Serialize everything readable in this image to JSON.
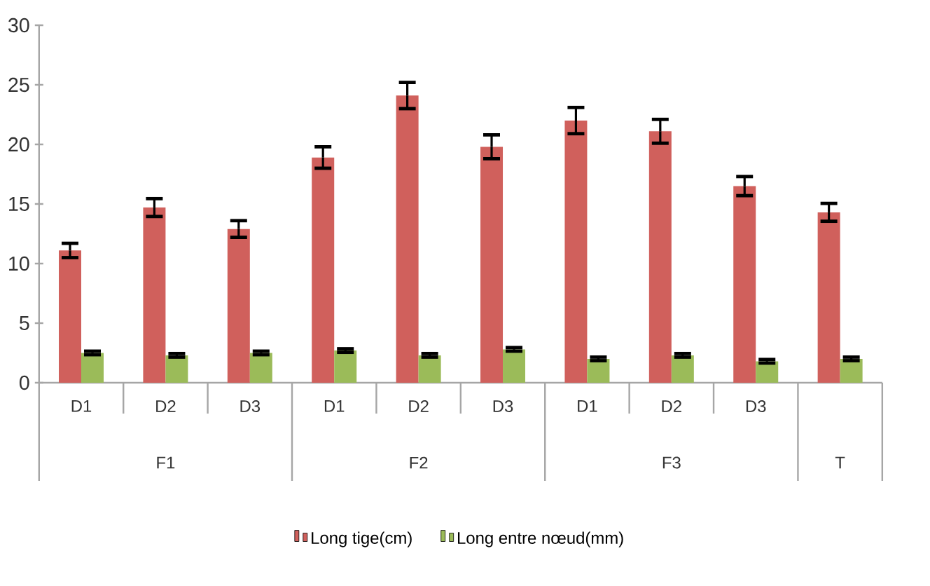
{
  "chart_data": {
    "type": "bar",
    "categories": [
      "D1",
      "D2",
      "D3",
      "D1",
      "D2",
      "D3",
      "D1",
      "D2",
      "D3",
      null
    ],
    "series": [
      {
        "name": "Long tige(cm)",
        "color": "#d0605c",
        "values": [
          11.1,
          14.7,
          12.9,
          18.9,
          24.1,
          19.8,
          22.0,
          21.1,
          16.5,
          14.3
        ],
        "errors": [
          0.6,
          0.75,
          0.7,
          0.9,
          1.1,
          1.0,
          1.1,
          1.0,
          0.8,
          0.75
        ]
      },
      {
        "name": "Long entre nœud(mm)",
        "color": "#9bbb59",
        "values": [
          2.5,
          2.3,
          2.5,
          2.7,
          2.3,
          2.8,
          2.0,
          2.3,
          1.8,
          2.0
        ],
        "errors": [
          0.15,
          0.15,
          0.15,
          0.15,
          0.15,
          0.15,
          0.15,
          0.15,
          0.15,
          0.15
        ]
      }
    ],
    "annotations": [
      "F1",
      "F2",
      "F3",
      "T"
    ],
    "ylim": [
      0,
      30
    ],
    "yticks": [
      0,
      5,
      10,
      15,
      20,
      25,
      30
    ],
    "grid": false,
    "legend": "bottom"
  }
}
